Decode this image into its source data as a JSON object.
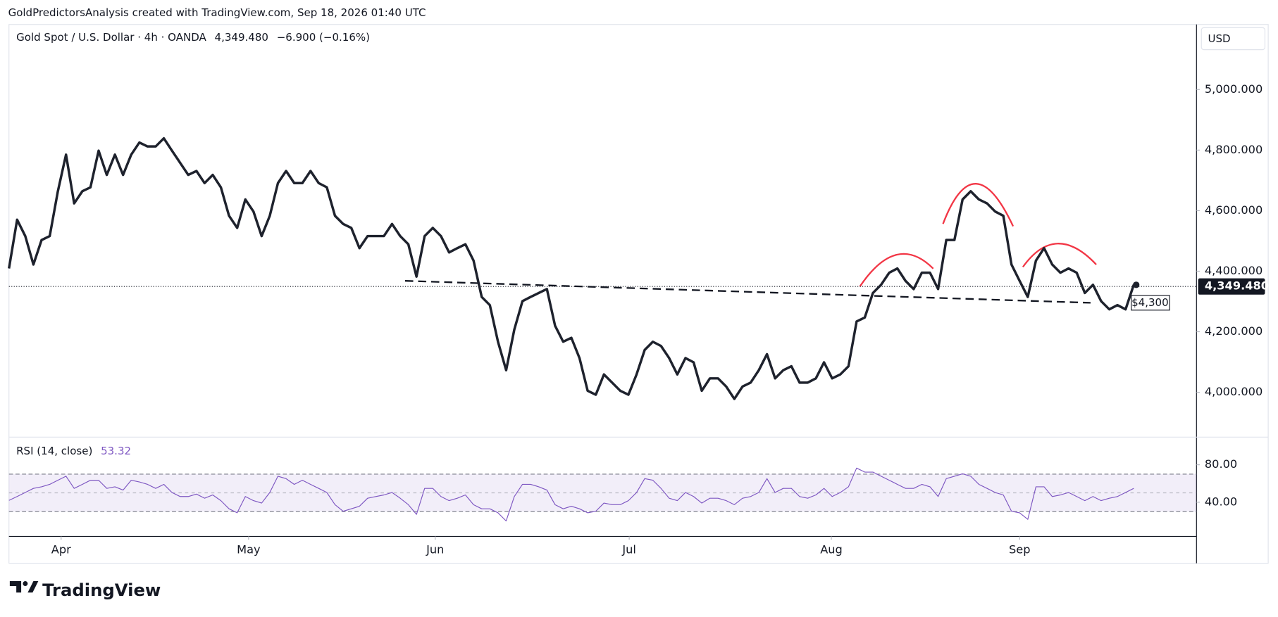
{
  "attribution": "GoldPredictorsAnalysis created with TradingView.com, Sep 18, 2026 01:40 UTC",
  "footer": "TradingView",
  "chart_data": [
    {
      "type": "line",
      "title": "Gold Spot / U.S. Dollar · 4h · OANDA",
      "last_value_label": "4,349.480",
      "change": "−6.900 (−0.16%)",
      "currency": "USD",
      "color": "#1e222d",
      "last_price": 4349.48,
      "values": [
        4409,
        4570,
        4516,
        4422,
        4503,
        4516,
        4664,
        4785,
        4624,
        4664,
        4677,
        4798,
        4718,
        4785,
        4718,
        4785,
        4825,
        4812,
        4812,
        4839,
        4798,
        4758,
        4718,
        4731,
        4691,
        4718,
        4677,
        4583,
        4543,
        4637,
        4597,
        4516,
        4583,
        4691,
        4731,
        4691,
        4691,
        4731,
        4691,
        4677,
        4583,
        4556,
        4543,
        4476,
        4516,
        4516,
        4516,
        4556,
        4516,
        4489,
        4382,
        4516,
        4543,
        4516,
        4462,
        4476,
        4489,
        4435,
        4315,
        4288,
        4167,
        4073,
        4207,
        4301,
        4315,
        4328,
        4341,
        4220,
        4167,
        4180,
        4113,
        4005,
        3992,
        4059,
        4032,
        4005,
        3992,
        4059,
        4140,
        4167,
        4153,
        4113,
        4059,
        4113,
        4099,
        4005,
        4046,
        4046,
        4019,
        3978,
        4019,
        4032,
        4073,
        4126,
        4046,
        4073,
        4086,
        4032,
        4032,
        4046,
        4099,
        4046,
        4059,
        4086,
        4234,
        4247,
        4328,
        4355,
        4395,
        4409,
        4368,
        4341,
        4395,
        4395,
        4341,
        4503,
        4503,
        4637,
        4664,
        4637,
        4624,
        4597,
        4583,
        4422,
        4368,
        4315,
        4435,
        4476,
        4422,
        4395,
        4409,
        4395,
        4328,
        4355,
        4301,
        4274,
        4288,
        4274,
        4355
      ],
      "xlim": [
        0,
        145.7
      ],
      "xticks": [
        {
          "value": 6.4,
          "label": "Apr"
        },
        {
          "value": 29.4,
          "label": "May"
        },
        {
          "value": 52.3,
          "label": "Jun"
        },
        {
          "value": 76.1,
          "label": "Jul"
        },
        {
          "value": 100.9,
          "label": "Aug"
        },
        {
          "value": 124,
          "label": "Sep"
        }
      ],
      "ylim": [
        3852,
        5215
      ],
      "yticks": [
        {
          "value": 4000,
          "label": "4,000.000"
        },
        {
          "value": 4200,
          "label": "4,200.000"
        },
        {
          "value": 4400,
          "label": "4,400.000"
        },
        {
          "value": 4600,
          "label": "4,600.000"
        },
        {
          "value": 4800,
          "label": "4,800.000"
        },
        {
          "value": 5000,
          "label": "5,000.000"
        }
      ],
      "grid": false,
      "annotations": [
        {
          "text": "$4,300"
        }
      ]
    },
    {
      "type": "line",
      "title": "RSI (14, close)",
      "last_value_label": "53.32",
      "color": "#7e57c2",
      "values": [
        42.0,
        46.1,
        50.4,
        54.8,
        56.5,
        59.1,
        63.5,
        67.8,
        54.8,
        59.1,
        63.5,
        63.5,
        54.8,
        56.5,
        53.0,
        63.5,
        61.7,
        59.1,
        54.8,
        59.1,
        50.4,
        46.1,
        46.1,
        48.7,
        44.3,
        47.8,
        41.7,
        33.0,
        28.7,
        46.1,
        41.7,
        39.1,
        50.4,
        67.8,
        65.2,
        59.1,
        63.5,
        59.1,
        54.8,
        50.4,
        37.4,
        30.4,
        33.0,
        35.7,
        44.3,
        46.1,
        47.8,
        50.4,
        44.3,
        37.4,
        27.0,
        54.8,
        54.8,
        46.1,
        41.7,
        44.3,
        47.8,
        37.4,
        33.0,
        33.0,
        28.7,
        20.0,
        46.1,
        59.1,
        59.1,
        56.5,
        53.0,
        37.4,
        33.0,
        35.7,
        33.0,
        28.7,
        30.4,
        39.1,
        37.4,
        37.4,
        41.7,
        50.4,
        65.2,
        63.5,
        54.8,
        44.3,
        41.7,
        50.4,
        46.1,
        39.1,
        44.3,
        44.3,
        41.7,
        37.4,
        44.3,
        46.1,
        50.4,
        65.2,
        50.4,
        54.8,
        54.8,
        46.1,
        44.3,
        47.8,
        54.8,
        46.1,
        50.4,
        56.5,
        76.5,
        72.2,
        72.2,
        67.8,
        63.5,
        59.1,
        54.8,
        54.8,
        59.1,
        56.5,
        46.1,
        65.2,
        67.8,
        70.4,
        67.8,
        59.1,
        54.8,
        50.4,
        47.8,
        30.4,
        28.7,
        21.7,
        56.5,
        56.5,
        46.1,
        47.8,
        50.4,
        46.1,
        41.7,
        46.1,
        41.7,
        44.3,
        46.1,
        50.4,
        54.8
      ],
      "ylim": [
        3.5,
        109.6
      ],
      "yticks": [
        {
          "value": 40,
          "label": "40.00"
        },
        {
          "value": 80,
          "label": "80.00"
        }
      ],
      "band_lines": [
        70,
        50,
        30
      ]
    }
  ]
}
